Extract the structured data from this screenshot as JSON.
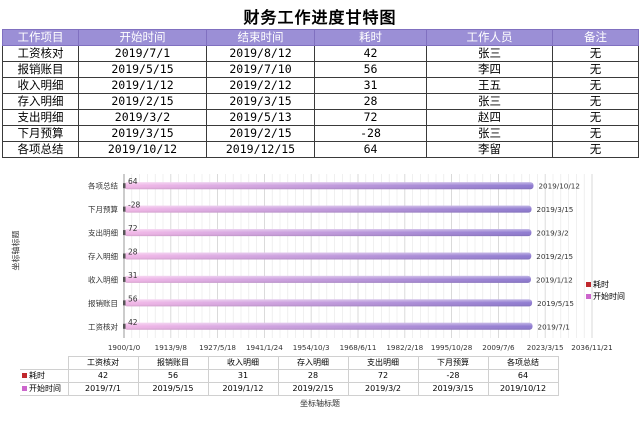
{
  "title": "财务工作进度甘特图",
  "table": {
    "headers": [
      "工作项目",
      "开始时间",
      "结束时间",
      "耗时",
      "工作人员",
      "备注"
    ],
    "rows": [
      [
        "工资核对",
        "2019/7/1",
        "2019/8/12",
        "42",
        "张三",
        "无"
      ],
      [
        "报销账目",
        "2019/5/15",
        "2019/7/10",
        "56",
        "李四",
        "无"
      ],
      [
        "收入明细",
        "2019/1/12",
        "2019/2/12",
        "31",
        "王五",
        "无"
      ],
      [
        "存入明细",
        "2019/2/15",
        "2019/3/15",
        "28",
        "张三",
        "无"
      ],
      [
        "支出明细",
        "2019/3/2",
        "2019/5/13",
        "72",
        "赵四",
        "无"
      ],
      [
        "下月预算",
        "2019/3/15",
        "2019/2/15",
        "-28",
        "张三",
        "无"
      ],
      [
        "各项总结",
        "2019/10/12",
        "2019/12/15",
        "64",
        "李留",
        "无"
      ]
    ]
  },
  "colors": {
    "header_bg": "#9b8fd6",
    "duration_series": "#c0282d",
    "start_series": "#cc66cc",
    "bar_gradient_start": "#f3b8e8",
    "bar_gradient_end": "#8e7ad0"
  },
  "chart_data": {
    "type": "bar",
    "orientation": "horizontal",
    "stacked": true,
    "categories": [
      "工资核对",
      "报销账目",
      "收入明细",
      "存入明细",
      "支出明细",
      "下月预算",
      "各项总结"
    ],
    "series": [
      {
        "name": "耗时",
        "values": [
          42,
          56,
          31,
          28,
          72,
          -28,
          64
        ]
      },
      {
        "name": "开始时间",
        "values": [
          "2019/7/1",
          "2019/5/15",
          "2019/1/12",
          "2019/2/15",
          "2019/3/2",
          "2019/3/15",
          "2019/10/12"
        ]
      }
    ],
    "x_ticks": [
      "1900/1/0",
      "1913/9/8",
      "1927/5/18",
      "1941/1/24",
      "1954/10/3",
      "1968/6/11",
      "1982/2/18",
      "1995/10/28",
      "2009/7/6",
      "2023/3/15",
      "2036/11/21"
    ],
    "xlabel": "坐标轴标题",
    "ylabel": "坐标轴标题",
    "legend": [
      "耗时",
      "开始时间"
    ],
    "legend_position": "right",
    "grid": true,
    "data_table": true
  }
}
